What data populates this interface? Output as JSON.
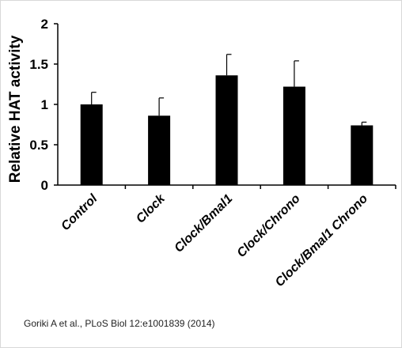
{
  "chart_data": {
    "type": "bar",
    "ylabel": "Relative HAT activity",
    "xlabel": "",
    "title": "",
    "ylim": [
      0,
      2
    ],
    "yticks": [
      "0",
      "0.5",
      "1",
      "1.5",
      "2"
    ],
    "categories": [
      "Control",
      "Clock",
      "Clock/Bmal1",
      "Clock/Chrono",
      "Clock/Bmal1 Chrono"
    ],
    "values": [
      1.0,
      0.86,
      1.36,
      1.22,
      0.74
    ],
    "errors": [
      0.15,
      0.22,
      0.26,
      0.32,
      0.04
    ],
    "bar_color": "#000000",
    "grid": false,
    "legend": false
  },
  "citation": "Goriki A et al., PLoS Biol 12:e1001839 (2014)"
}
